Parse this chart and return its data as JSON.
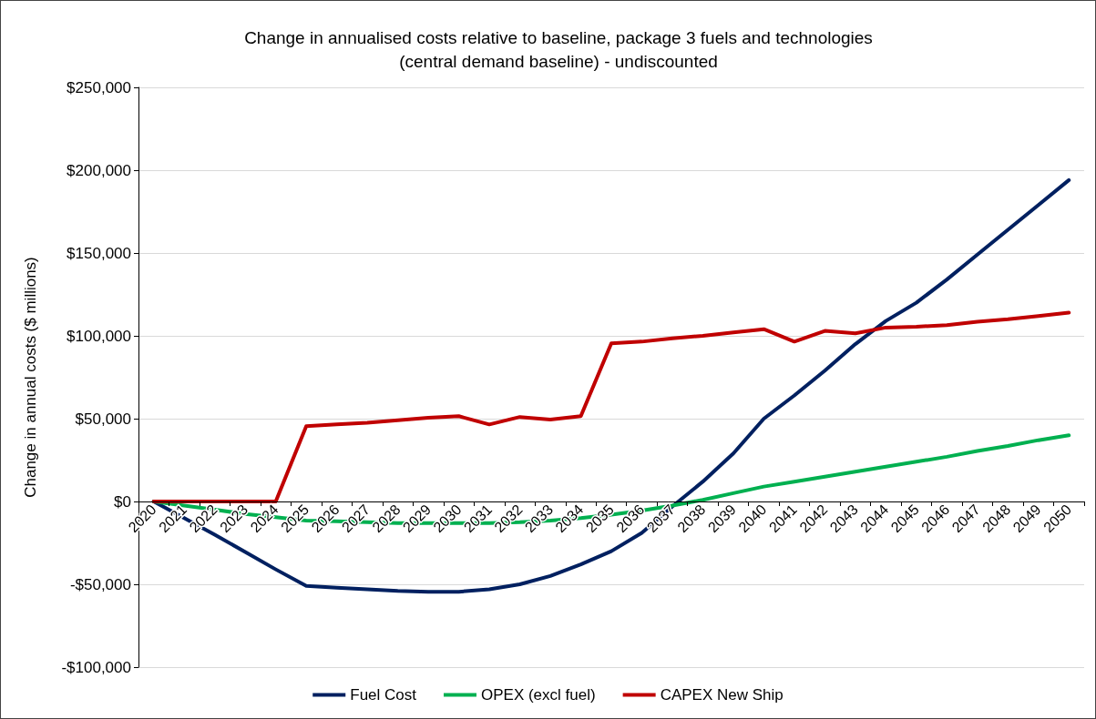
{
  "chart_data": {
    "type": "line",
    "title": "Change in annualised costs relative to baseline, package 3 fuels and technologies\n(central demand baseline) - undiscounted",
    "ylabel": "Change in annual costs ($ millions)",
    "categories": [
      "2020",
      "2021",
      "2022",
      "2023",
      "2024",
      "2025",
      "2026",
      "2027",
      "2028",
      "2029",
      "2030",
      "2031",
      "2032",
      "2033",
      "2034",
      "2035",
      "2036",
      "2037",
      "2038",
      "2039",
      "2040",
      "2041",
      "2042",
      "2043",
      "2044",
      "2045",
      "2046",
      "2047",
      "2048",
      "2049",
      "2050"
    ],
    "series": [
      {
        "name": "Fuel Cost",
        "color": "#002060",
        "values": [
          0,
          -10000,
          -20000,
          -30500,
          -41000,
          -51000,
          -52000,
          -53000,
          -54000,
          -54500,
          -54500,
          -53000,
          -50000,
          -45000,
          -38000,
          -30000,
          -19000,
          -3000,
          12000,
          29000,
          50000,
          64000,
          79000,
          95000,
          109000,
          120000,
          134000,
          149000,
          164000,
          179000,
          194000
        ]
      },
      {
        "name": "OPEX (excl fuel)",
        "color": "#00b050",
        "values": [
          0,
          -2500,
          -5000,
          -7500,
          -9500,
          -11500,
          -12000,
          -12500,
          -13000,
          -13000,
          -13000,
          -13000,
          -12500,
          -11500,
          -10000,
          -8000,
          -5500,
          -2500,
          1000,
          5000,
          9000,
          12000,
          15000,
          18000,
          21000,
          24000,
          27000,
          30500,
          33500,
          37000,
          40000
        ]
      },
      {
        "name": "CAPEX New Ship",
        "color": "#c00000",
        "values": [
          0,
          0,
          0,
          0,
          0,
          45500,
          46500,
          47500,
          49000,
          50500,
          51500,
          46500,
          51000,
          49500,
          51500,
          95500,
          96500,
          98500,
          100000,
          102000,
          104000,
          96500,
          103000,
          101500,
          105000,
          105500,
          106500,
          108500,
          110000,
          112000,
          114000
        ]
      }
    ],
    "ylim": [
      -100000,
      250000
    ],
    "yticks": [
      {
        "value": -100000,
        "label": "-$100,000"
      },
      {
        "value": -50000,
        "label": "-$50,000"
      },
      {
        "value": 0,
        "label": "$0"
      },
      {
        "value": 50000,
        "label": "$50,000"
      },
      {
        "value": 100000,
        "label": "$100,000"
      },
      {
        "value": 150000,
        "label": "$150,000"
      },
      {
        "value": 200000,
        "label": "$200,000"
      },
      {
        "value": 250000,
        "label": "$250,000"
      }
    ],
    "grid": "y",
    "legend": "bottom",
    "marker": "none",
    "line_style": "solid"
  }
}
